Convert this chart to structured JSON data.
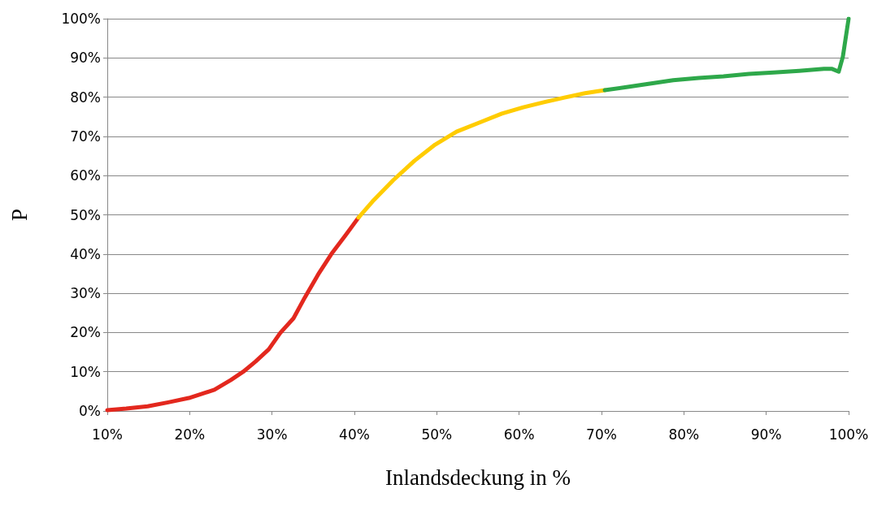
{
  "chart_data": {
    "type": "line",
    "xlabel": "Inlandsdeckung in %",
    "ylabel": "P",
    "grid": "y",
    "marker": "none",
    "line_style": "solid",
    "xlim": [
      10,
      100
    ],
    "xticks": [
      {
        "value": 10,
        "label": "10%"
      },
      {
        "value": 20,
        "label": "20%"
      },
      {
        "value": 30,
        "label": "30%"
      },
      {
        "value": 40,
        "label": "40%"
      },
      {
        "value": 50,
        "label": "50%"
      },
      {
        "value": 60,
        "label": "60%"
      },
      {
        "value": 70,
        "label": "70%"
      },
      {
        "value": 80,
        "label": "80%"
      },
      {
        "value": 90,
        "label": "90%"
      },
      {
        "value": 100,
        "label": "100%"
      }
    ],
    "ylim": [
      0,
      100
    ],
    "yticks": [
      {
        "value": 0,
        "label": "0%"
      },
      {
        "value": 10,
        "label": "10%"
      },
      {
        "value": 20,
        "label": "20%"
      },
      {
        "value": 30,
        "label": "30%"
      },
      {
        "value": 40,
        "label": "40%"
      },
      {
        "value": 50,
        "label": "50%"
      },
      {
        "value": 60,
        "label": "60%"
      },
      {
        "value": 70,
        "label": "70%"
      },
      {
        "value": 80,
        "label": "80%"
      },
      {
        "value": 90,
        "label": "90%"
      },
      {
        "value": 100,
        "label": "100%"
      }
    ],
    "series": [
      {
        "color": "#e3281e",
        "x": [
          10,
          12.3,
          14.9,
          17.4,
          19.9,
          23,
          25,
          26.5,
          28,
          29.6,
          31,
          32.6,
          34,
          35.6,
          37.2,
          38.9,
          40.5
        ],
        "values": [
          0.2,
          0.6,
          1.2,
          2.2,
          3.3,
          5.4,
          7.9,
          10,
          12.6,
          15.7,
          19.9,
          23.6,
          29,
          34.8,
          40,
          44.7,
          49.3
        ]
      },
      {
        "color": "#ffcc00",
        "x": [
          40.5,
          42.2,
          44.7,
          47.3,
          49.8,
          52.4,
          55.4,
          57.9,
          60.5,
          63,
          65.5,
          68,
          70.4
        ],
        "values": [
          49.3,
          53.4,
          58.8,
          63.8,
          67.9,
          71.2,
          73.7,
          75.8,
          77.4,
          78.7,
          79.9,
          81,
          81.8
        ]
      },
      {
        "color": "#2ea84a",
        "x": [
          70.4,
          73.2,
          75.7,
          78.7,
          81.8,
          84.8,
          87.9,
          90.9,
          94,
          97,
          98,
          98.8,
          99.3,
          100
        ],
        "values": [
          81.8,
          82.6,
          83.4,
          84.3,
          84.9,
          85.3,
          85.9,
          86.3,
          86.7,
          87.2,
          87.2,
          86.5,
          90.3,
          100
        ]
      }
    ]
  }
}
